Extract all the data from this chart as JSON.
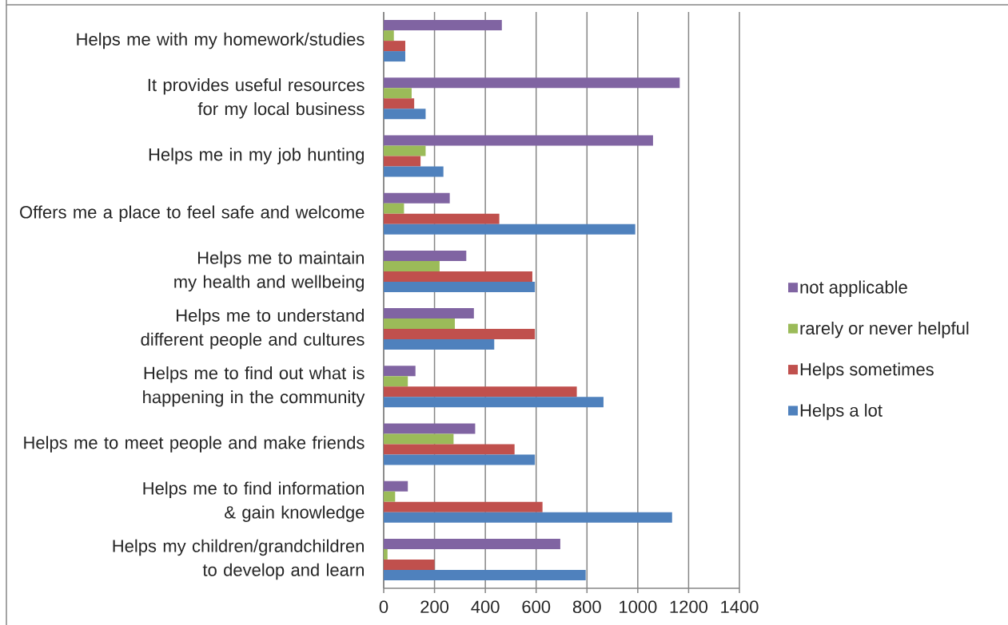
{
  "chart_data": {
    "type": "bar",
    "orientation": "horizontal",
    "categories": [
      "Helps me with my homework/studies",
      "It provides useful resources for my local business",
      "Helps me in my job hunting",
      "Offers me a place to feel safe and welcome",
      "Helps me to maintain my health and wellbeing",
      "Helps me to understand different people and cultures",
      "Helps me to find out what is happening in the community",
      "Helps me to meet people and make friends",
      "Helps me to find information & gain knowledge",
      "Helps my children/grandchildren to develop and learn"
    ],
    "series": [
      {
        "name": "not applicable",
        "color": "#8064a2",
        "values": [
          465,
          1165,
          1060,
          260,
          325,
          355,
          125,
          360,
          95,
          695
        ]
      },
      {
        "name": "rarely or never helpful",
        "color": "#9bbb59",
        "values": [
          40,
          110,
          165,
          80,
          220,
          280,
          95,
          275,
          45,
          15
        ]
      },
      {
        "name": "Helps sometimes",
        "color": "#c0504d",
        "values": [
          85,
          120,
          145,
          455,
          585,
          595,
          760,
          515,
          625,
          200
        ]
      },
      {
        "name": "Helps a lot",
        "color": "#4f81bd",
        "values": [
          85,
          165,
          235,
          990,
          595,
          435,
          865,
          595,
          1135,
          795
        ]
      }
    ],
    "xlim": [
      0,
      1400
    ],
    "xticks": [
      0,
      200,
      400,
      600,
      800,
      1000,
      1200,
      1400
    ],
    "grid": "x",
    "legend": "right"
  }
}
